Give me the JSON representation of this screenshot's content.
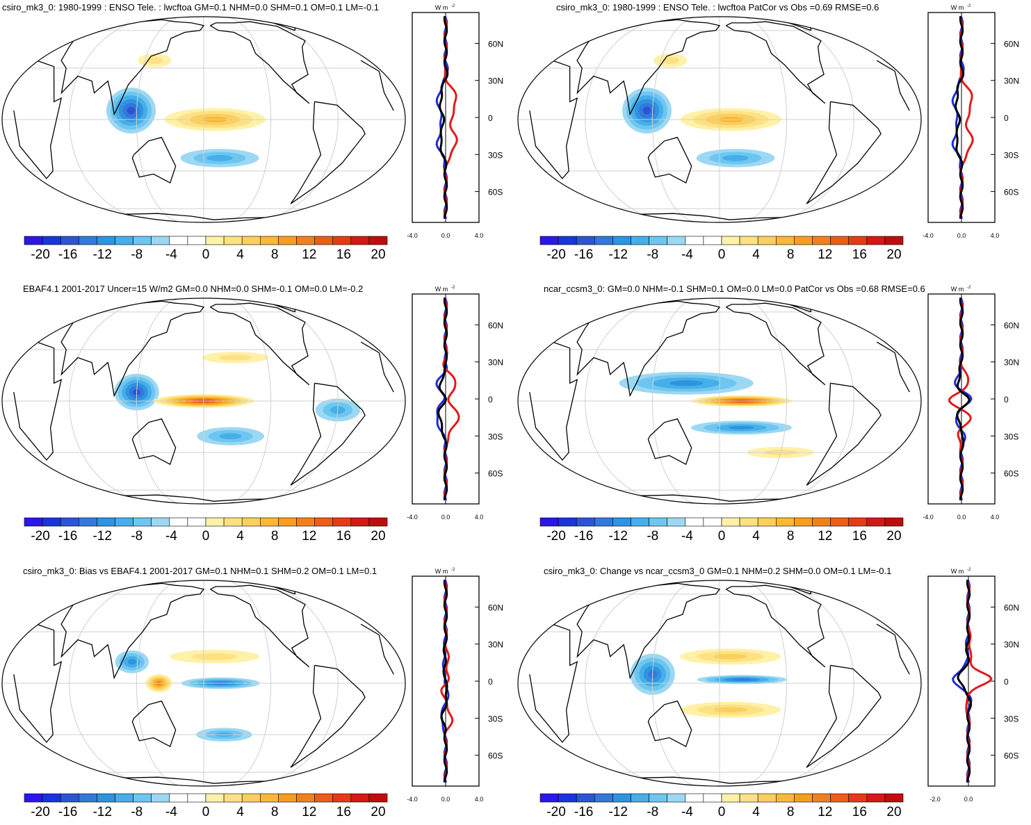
{
  "figure": {
    "units_label": "W m",
    "units_exponent": "-2",
    "colorbar": {
      "colors": [
        "#2a17e8",
        "#1a35dd",
        "#2b55d6",
        "#3478da",
        "#2e93e0",
        "#46aee8",
        "#6dc6ef",
        "#9cd8f3",
        "#ffffff",
        "#ffffff",
        "#fff1a8",
        "#fde184",
        "#fbcf5c",
        "#f9b836",
        "#f79f1c",
        "#f2801a",
        "#ec5d17",
        "#e53a16",
        "#d51717",
        "#bf0d0d"
      ],
      "labels": [
        "-20",
        "-16",
        "-12",
        "-8",
        "-4",
        "0",
        "4",
        "8",
        "12",
        "16",
        "20"
      ]
    },
    "latitude_labels": [
      "60N",
      "30N",
      "0",
      "30S",
      "60S"
    ]
  },
  "panels": [
    {
      "id": "p1",
      "title": "csiro_mk3_0: 1980-1999 : ENSO Tele. : lwcftoa GM=0.1 NHM=0.0 SHM=0.1 OM=0.1 LM=-0.1",
      "profile_x_labels": [
        "-4.0",
        "0.0",
        "4.0"
      ],
      "fields": [
        {
          "type": "neg",
          "lon": 115,
          "lat": 5,
          "rlon": 22,
          "rlat": 20,
          "strength": 0.8
        },
        {
          "type": "pos",
          "lon": 190,
          "lat": 0,
          "rlon": 45,
          "rlat": 10,
          "strength": 0.45
        },
        {
          "type": "neg",
          "lon": 195,
          "lat": -22,
          "rlon": 35,
          "rlat": 8,
          "strength": 0.4
        },
        {
          "type": "pos",
          "lon": 130,
          "lat": 35,
          "rlon": 15,
          "rlat": 6,
          "strength": 0.2
        }
      ]
    },
    {
      "id": "p2",
      "title": "csiro_mk3_0: 1980-1999 : ENSO Tele. : lwcftoa PatCor vs Obs =0.69 RMSE=0.6",
      "profile_x_labels": [
        "-4.0",
        "0.0",
        "4.0"
      ],
      "fields": [
        {
          "type": "neg",
          "lon": 115,
          "lat": 5,
          "rlon": 22,
          "rlat": 20,
          "strength": 0.8
        },
        {
          "type": "pos",
          "lon": 190,
          "lat": 0,
          "rlon": 45,
          "rlat": 10,
          "strength": 0.45
        },
        {
          "type": "neg",
          "lon": 195,
          "lat": -22,
          "rlon": 35,
          "rlat": 8,
          "strength": 0.4
        },
        {
          "type": "pos",
          "lon": 130,
          "lat": 35,
          "rlon": 15,
          "rlat": 6,
          "strength": 0.2
        }
      ]
    },
    {
      "id": "p3",
      "title": "EBAF4.1 2001-2017 Uncer=15 W/m2 GM=0.0 NHM=0.0 SHM=-0.1 OM=0.0 LM=-0.2",
      "profile_x_labels": [
        "-4.0",
        "0.0",
        "4.0"
      ],
      "fields": [
        {
          "type": "neg",
          "lon": 120,
          "lat": 5,
          "rlon": 20,
          "rlat": 16,
          "strength": 0.75
        },
        {
          "type": "pos",
          "lon": 180,
          "lat": 0,
          "rlon": 45,
          "rlat": 6,
          "strength": 0.95
        },
        {
          "type": "neg",
          "lon": 205,
          "lat": -20,
          "rlon": 30,
          "rlat": 8,
          "strength": 0.35
        },
        {
          "type": "pos",
          "lon": 210,
          "lat": 25,
          "rlon": 30,
          "rlat": 5,
          "strength": 0.25
        },
        {
          "type": "neg",
          "lon": 300,
          "lat": -5,
          "rlon": 20,
          "rlat": 10,
          "strength": 0.4
        }
      ]
    },
    {
      "id": "p4",
      "title": "ncar_ccsm3_0: GM=0.0 NHM=-0.1 SHM=0.1 OM=0.0 LM=0.0 PatCor vs Obs =0.68 RMSE=0.6",
      "profile_x_labels": [
        "-4.0",
        "0.0",
        "4.0"
      ],
      "fields": [
        {
          "type": "neg",
          "lon": 150,
          "lat": 10,
          "rlon": 60,
          "rlat": 10,
          "strength": 0.45
        },
        {
          "type": "pos",
          "lon": 200,
          "lat": 0,
          "rlon": 45,
          "rlat": 5,
          "strength": 0.95
        },
        {
          "type": "neg",
          "lon": 200,
          "lat": -15,
          "rlon": 45,
          "rlat": 6,
          "strength": 0.45
        },
        {
          "type": "pos",
          "lon": 240,
          "lat": -30,
          "rlon": 30,
          "rlat": 5,
          "strength": 0.2
        }
      ]
    },
    {
      "id": "p5",
      "title": "csiro_mk3_0: Bias vs EBAF4.1 2001-2017 GM=0.1 NHM=0.1 SHM=0.2 OM=0.1 LM=0.1",
      "profile_x_labels": [
        "-4.0",
        "0.0",
        "4.0"
      ],
      "fields": [
        {
          "type": "pos",
          "lon": 140,
          "lat": 0,
          "rlon": 12,
          "rlat": 8,
          "strength": 0.7
        },
        {
          "type": "neg",
          "lon": 195,
          "lat": 0,
          "rlon": 35,
          "rlat": 5,
          "strength": 0.6
        },
        {
          "type": "pos",
          "lon": 190,
          "lat": 15,
          "rlon": 40,
          "rlat": 6,
          "strength": 0.3
        },
        {
          "type": "neg",
          "lon": 115,
          "lat": 12,
          "rlon": 15,
          "rlat": 10,
          "strength": 0.5
        },
        {
          "type": "neg",
          "lon": 200,
          "lat": -30,
          "rlon": 25,
          "rlat": 6,
          "strength": 0.35
        }
      ]
    },
    {
      "id": "p6",
      "title": "csiro_mk3_0: Change vs ncar_ccsm3_0 GM=0.1 NHM=0.2 SHM=0.0 OM=0.1 LM=-0.1",
      "profile_x_labels": [
        "-2.0",
        "0.0"
      ],
      "fields": [
        {
          "type": "neg",
          "lon": 120,
          "lat": 5,
          "rlon": 20,
          "rlat": 18,
          "strength": 0.6
        },
        {
          "type": "neg",
          "lon": 200,
          "lat": 2,
          "rlon": 40,
          "rlat": 4,
          "strength": 0.65
        },
        {
          "type": "pos",
          "lon": 190,
          "lat": 15,
          "rlon": 45,
          "rlat": 7,
          "strength": 0.35
        },
        {
          "type": "pos",
          "lon": 190,
          "lat": -15,
          "rlon": 45,
          "rlat": 7,
          "strength": 0.35
        }
      ]
    }
  ]
}
